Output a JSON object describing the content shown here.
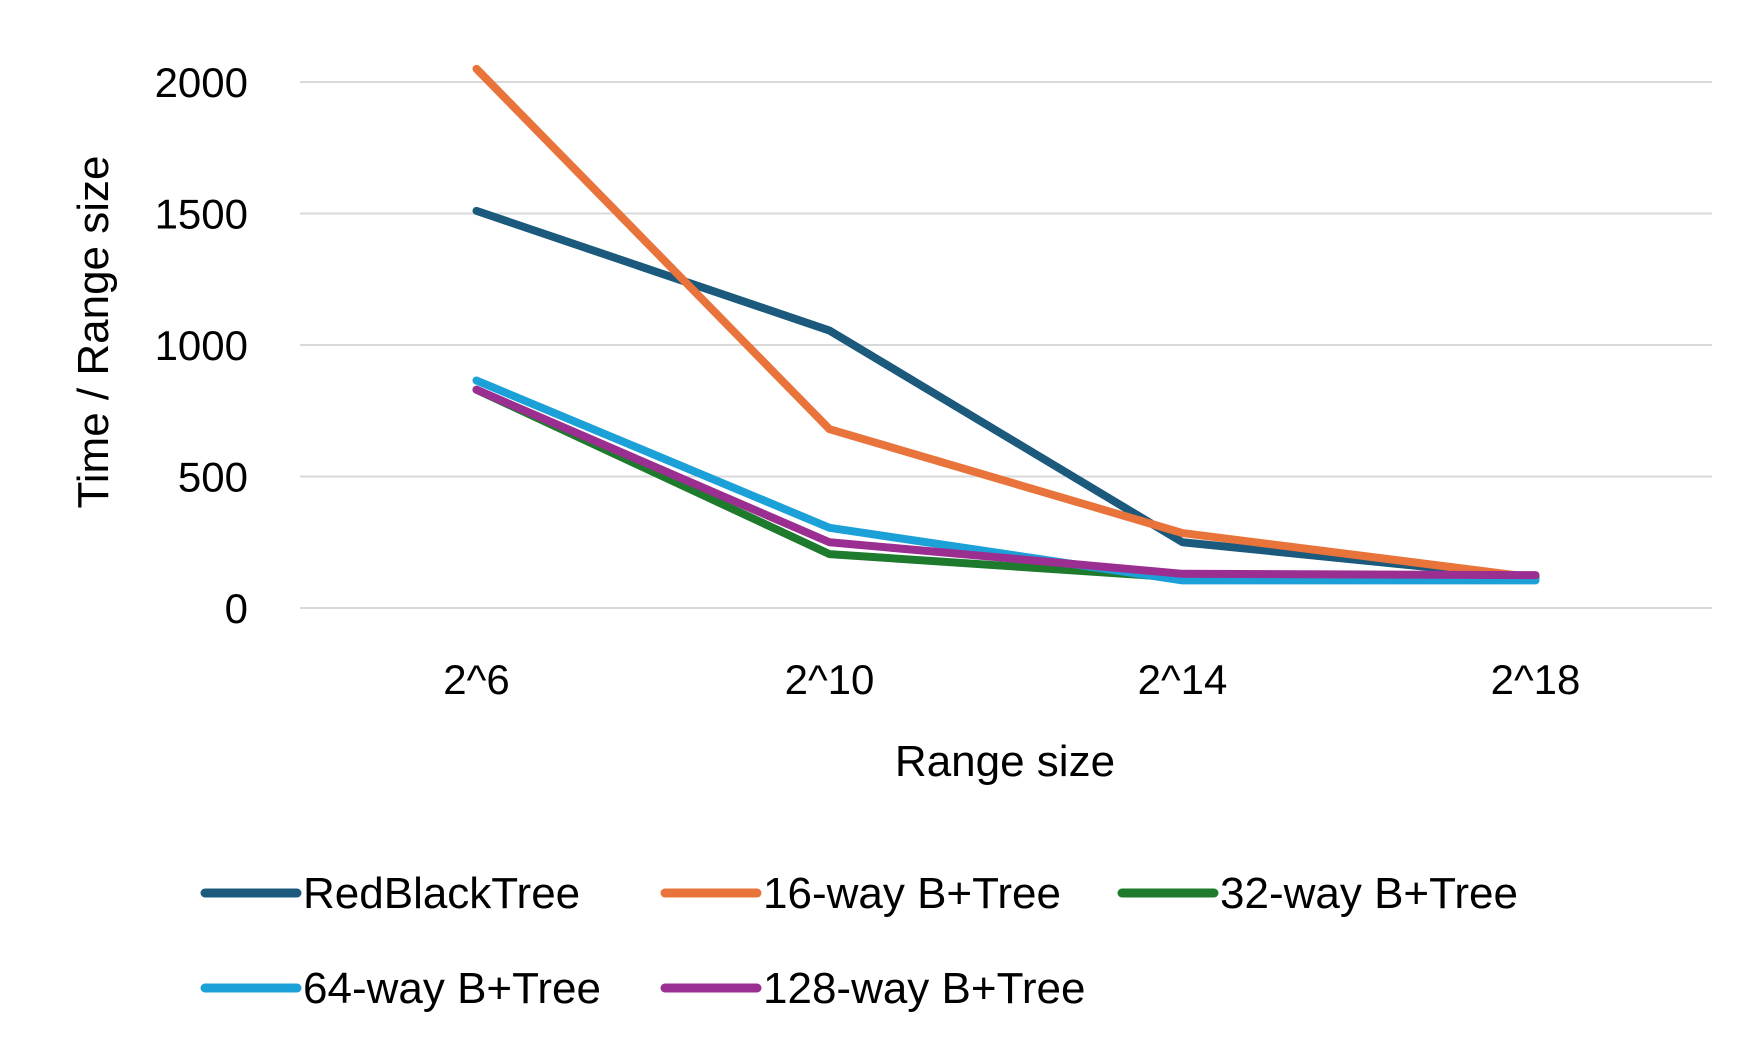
{
  "chart_data": {
    "type": "line",
    "categories": [
      "2^6",
      "2^10",
      "2^14",
      "2^18"
    ],
    "xlabel": "Range size",
    "ylabel": "Time / Range size",
    "ylim": [
      0,
      2000
    ],
    "yticks": [
      0,
      500,
      1000,
      1500,
      2000
    ],
    "grid": true,
    "legend_position": "bottom",
    "series": [
      {
        "name": "RedBlackTree",
        "color": "#1b5a7c",
        "values": [
          1510,
          1055,
          250,
          115
        ]
      },
      {
        "name": "16-way B+Tree",
        "color": "#e8743b",
        "values": [
          2050,
          680,
          285,
          115
        ]
      },
      {
        "name": "32-way B+Tree",
        "color": "#1e7a2c",
        "values": [
          830,
          205,
          115,
          120
        ]
      },
      {
        "name": "64-way B+Tree",
        "color": "#1ba1d8",
        "values": [
          865,
          305,
          105,
          105
        ]
      },
      {
        "name": "128-way B+Tree",
        "color": "#9b2f91",
        "values": [
          830,
          250,
          130,
          125
        ]
      }
    ]
  }
}
